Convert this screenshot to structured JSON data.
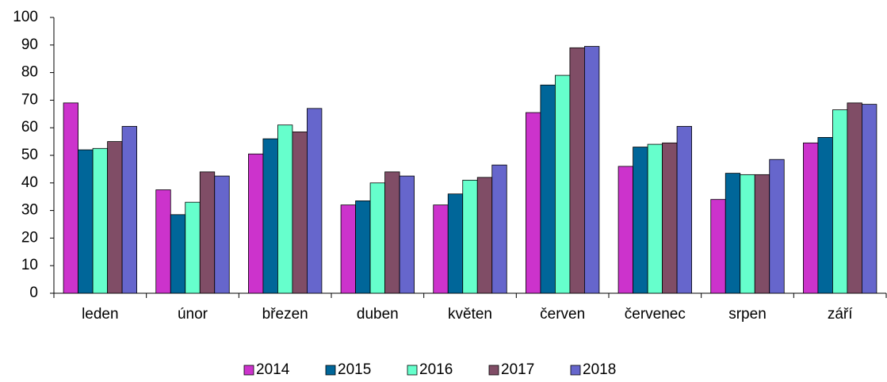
{
  "chart_data": {
    "type": "bar",
    "categories": [
      "leden",
      "únor",
      "březen",
      "duben",
      "květen",
      "červen",
      "červenec",
      "srpen",
      "září"
    ],
    "series": [
      {
        "name": "2014",
        "color": "#cc33cc",
        "values": [
          69,
          37.5,
          50.5,
          32,
          32,
          65.5,
          46,
          34,
          54.5
        ]
      },
      {
        "name": "2015",
        "color": "#006699",
        "values": [
          52,
          28.5,
          56,
          33.5,
          36,
          75.5,
          53,
          43.5,
          56.5
        ]
      },
      {
        "name": "2016",
        "color": "#66ffcc",
        "values": [
          52.5,
          33,
          61,
          40,
          41,
          79,
          54,
          43,
          66.5
        ]
      },
      {
        "name": "2017",
        "color": "#804d66",
        "values": [
          55,
          44,
          58.5,
          44,
          42,
          89,
          54.5,
          43,
          69
        ]
      },
      {
        "name": "2018",
        "color": "#6666cc",
        "values": [
          60.5,
          42.5,
          67,
          42.5,
          46.5,
          89.5,
          60.5,
          48.5,
          68.5
        ]
      }
    ],
    "ylim": [
      0,
      100
    ],
    "yticks": [
      0,
      10,
      20,
      30,
      40,
      50,
      60,
      70,
      80,
      90,
      100
    ],
    "legend": "bottom"
  }
}
